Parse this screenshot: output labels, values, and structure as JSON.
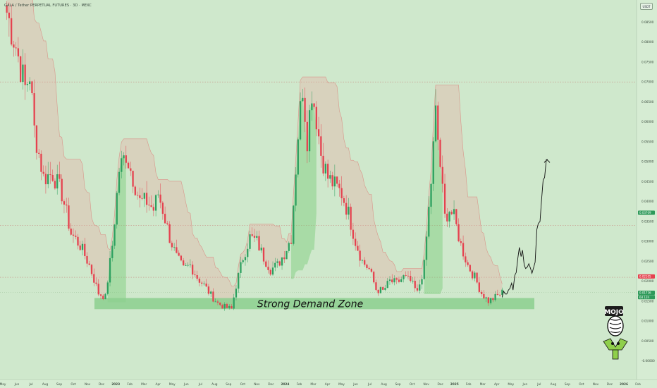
{
  "header": {
    "title": "GALA / Tether PERPETUAL FUTURES · 3D · MEXC",
    "currency": "USDT"
  },
  "annotations": {
    "zone_label": "Strong Demand Zone"
  },
  "colors": {
    "background": "#cfe8cc",
    "up": "#2da05f",
    "down": "#e5424f",
    "zone": "#8ccf8e",
    "cloud_bear": "rgba(231,170,160,0.35)",
    "cloud_bull": "rgba(120,205,120,0.45)",
    "price_marker": "#2e9a5a",
    "red_marker": "#e5424f"
  },
  "chart_data": {
    "type": "candlestick",
    "title": "GALA / Tether PERPETUAL FUTURES · 3D · MEXC",
    "y_axis_unit": "USDT",
    "ylim": [
      -0.002,
      0.09
    ],
    "y_ticks": [
      "0.08500",
      "0.08000",
      "0.07500",
      "0.07000",
      "0.06500",
      "0.06000",
      "0.05500",
      "0.05000",
      "0.04500",
      "0.04000",
      "0.03500",
      "0.03000",
      "0.02500",
      "0.02000",
      "0.01500",
      "0.01000",
      "0.00500",
      "-0.00000"
    ],
    "x_tick_labels": [
      "May",
      "Jun",
      "Jul",
      "Aug",
      "Sep",
      "Oct",
      "Nov",
      "Dec",
      "2023",
      "Feb",
      "Mar",
      "Apr",
      "May",
      "Jun",
      "Jul",
      "Aug",
      "Sep",
      "Oct",
      "Nov",
      "Dec",
      "2024",
      "Feb",
      "Mar",
      "Apr",
      "May",
      "Jun",
      "Jul",
      "Aug",
      "Sep",
      "Oct",
      "Nov",
      "Dec",
      "2025",
      "Feb",
      "Mar",
      "Apr",
      "May",
      "Jun",
      "Jul",
      "Aug",
      "Sep",
      "Oct",
      "Nov",
      "Dec",
      "2026",
      "Feb"
    ],
    "x_tick_bold": [
      "2023",
      "2024",
      "2025",
      "2026"
    ],
    "price_markers": [
      {
        "value": 0.0372,
        "label": "0.03709",
        "color": "green"
      },
      {
        "value": 0.0212,
        "label": "0.02105",
        "color": "red"
      },
      {
        "value": 0.01712,
        "label": "0.01716",
        "color": "green"
      },
      {
        "value": 0.016,
        "label": "6d 12h",
        "color": "green"
      }
    ],
    "reference_lines": [
      0.07,
      0.034,
      0.021
    ],
    "demand_zone": {
      "from": 0.013,
      "to": 0.0158,
      "label": "Strong Demand Zone"
    },
    "anchors": [
      [
        0,
        0.0875
      ],
      [
        4,
        0.079
      ],
      [
        8,
        0.0685
      ],
      [
        10,
        0.072
      ],
      [
        12,
        0.058
      ],
      [
        16,
        0.046
      ],
      [
        20,
        0.047
      ],
      [
        24,
        0.042
      ],
      [
        28,
        0.032
      ],
      [
        32,
        0.029
      ],
      [
        36,
        0.024
      ],
      [
        40,
        0.017
      ],
      [
        43,
        0.016
      ],
      [
        46,
        0.029
      ],
      [
        49,
        0.048
      ],
      [
        52,
        0.052
      ],
      [
        55,
        0.046
      ],
      [
        58,
        0.04
      ],
      [
        61,
        0.04
      ],
      [
        64,
        0.038
      ],
      [
        66,
        0.042
      ],
      [
        68,
        0.038
      ],
      [
        71,
        0.031
      ],
      [
        74,
        0.026
      ],
      [
        77,
        0.023
      ],
      [
        80,
        0.024
      ],
      [
        83,
        0.021
      ],
      [
        86,
        0.019
      ],
      [
        89,
        0.0165
      ],
      [
        92,
        0.0145
      ],
      [
        95,
        0.0135
      ],
      [
        98,
        0.013
      ],
      [
        100,
        0.019
      ],
      [
        103,
        0.026
      ],
      [
        106,
        0.031
      ],
      [
        109,
        0.03
      ],
      [
        112,
        0.026
      ],
      [
        115,
        0.023
      ],
      [
        118,
        0.024
      ],
      [
        121,
        0.027
      ],
      [
        124,
        0.031
      ],
      [
        127,
        0.057
      ],
      [
        129,
        0.069
      ],
      [
        131,
        0.056
      ],
      [
        133,
        0.068
      ],
      [
        135,
        0.061
      ],
      [
        137,
        0.052
      ],
      [
        140,
        0.046
      ],
      [
        143,
        0.044
      ],
      [
        146,
        0.042
      ],
      [
        149,
        0.037
      ],
      [
        152,
        0.03
      ],
      [
        155,
        0.025
      ],
      [
        158,
        0.023
      ],
      [
        161,
        0.018
      ],
      [
        164,
        0.0175
      ],
      [
        167,
        0.02
      ],
      [
        170,
        0.0195
      ],
      [
        173,
        0.021
      ],
      [
        176,
        0.02
      ],
      [
        179,
        0.017
      ],
      [
        182,
        0.024
      ],
      [
        185,
        0.045
      ],
      [
        187,
        0.062
      ],
      [
        189,
        0.049
      ],
      [
        191,
        0.036
      ],
      [
        193,
        0.038
      ],
      [
        195,
        0.036
      ],
      [
        198,
        0.029
      ],
      [
        201,
        0.024
      ],
      [
        204,
        0.021
      ],
      [
        207,
        0.017
      ],
      [
        210,
        0.015
      ],
      [
        213,
        0.016
      ],
      [
        216,
        0.0172
      ]
    ],
    "projection_path": [
      [
        0.016,
        0.0175
      ],
      [
        0.0168,
        0.0168
      ],
      [
        0.0178,
        0.0182
      ],
      [
        0.0195,
        0.0178
      ],
      [
        0.0215,
        0.0222
      ],
      [
        0.026,
        0.0285
      ],
      [
        0.0262,
        0.0278
      ],
      [
        0.024,
        0.0232
      ],
      [
        0.0236,
        0.0244
      ],
      [
        0.0232,
        0.022
      ],
      [
        0.0235,
        0.0248
      ],
      [
        0.033,
        0.0345
      ],
      [
        0.035,
        0.04
      ],
      [
        0.0455,
        0.046
      ],
      [
        0.0505,
        0.0505
      ]
    ]
  }
}
